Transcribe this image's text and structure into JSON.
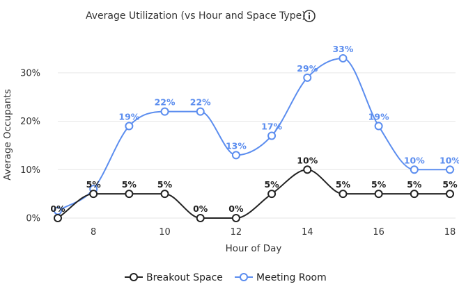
{
  "chart_data": {
    "type": "line",
    "title": "Average Utilization (vs Hour and Space Type)",
    "info_icon": "info-icon",
    "xlabel": "Hour of Day",
    "ylabel": "Average Occupants",
    "x": [
      7,
      8,
      9,
      10,
      11,
      12,
      13,
      14,
      15,
      16,
      17,
      18
    ],
    "xticks": [
      8,
      10,
      12,
      14,
      16,
      18
    ],
    "xtick_labels": [
      "8",
      "10",
      "12",
      "14",
      "16",
      "18"
    ],
    "xlim": [
      7,
      18
    ],
    "ylim": [
      0,
      35
    ],
    "yticks": [
      0,
      10,
      20,
      30
    ],
    "ytick_labels": [
      "0%",
      "10%",
      "20%",
      "30%"
    ],
    "grid": "horizontal",
    "legend_position": "bottom-center",
    "series": [
      {
        "name": "Breakout Space",
        "color": "#222222",
        "values": [
          0,
          5,
          5,
          5,
          0,
          0,
          5,
          10,
          5,
          5,
          5,
          5
        ],
        "labels": [
          "0%",
          "5%",
          "5%",
          "5%",
          "0%",
          "0%",
          "5%",
          "10%",
          "5%",
          "5%",
          "5%",
          "5%"
        ]
      },
      {
        "name": "Meeting Room",
        "color": "#5b8def",
        "values": [
          1.5,
          6,
          19,
          22,
          22,
          13,
          17,
          29,
          33,
          19,
          10,
          10
        ],
        "labels": [
          "",
          "",
          "19%",
          "22%",
          "22%",
          "13%",
          "17%",
          "29%",
          "33%",
          "19%",
          "10%",
          "10%"
        ]
      }
    ]
  }
}
